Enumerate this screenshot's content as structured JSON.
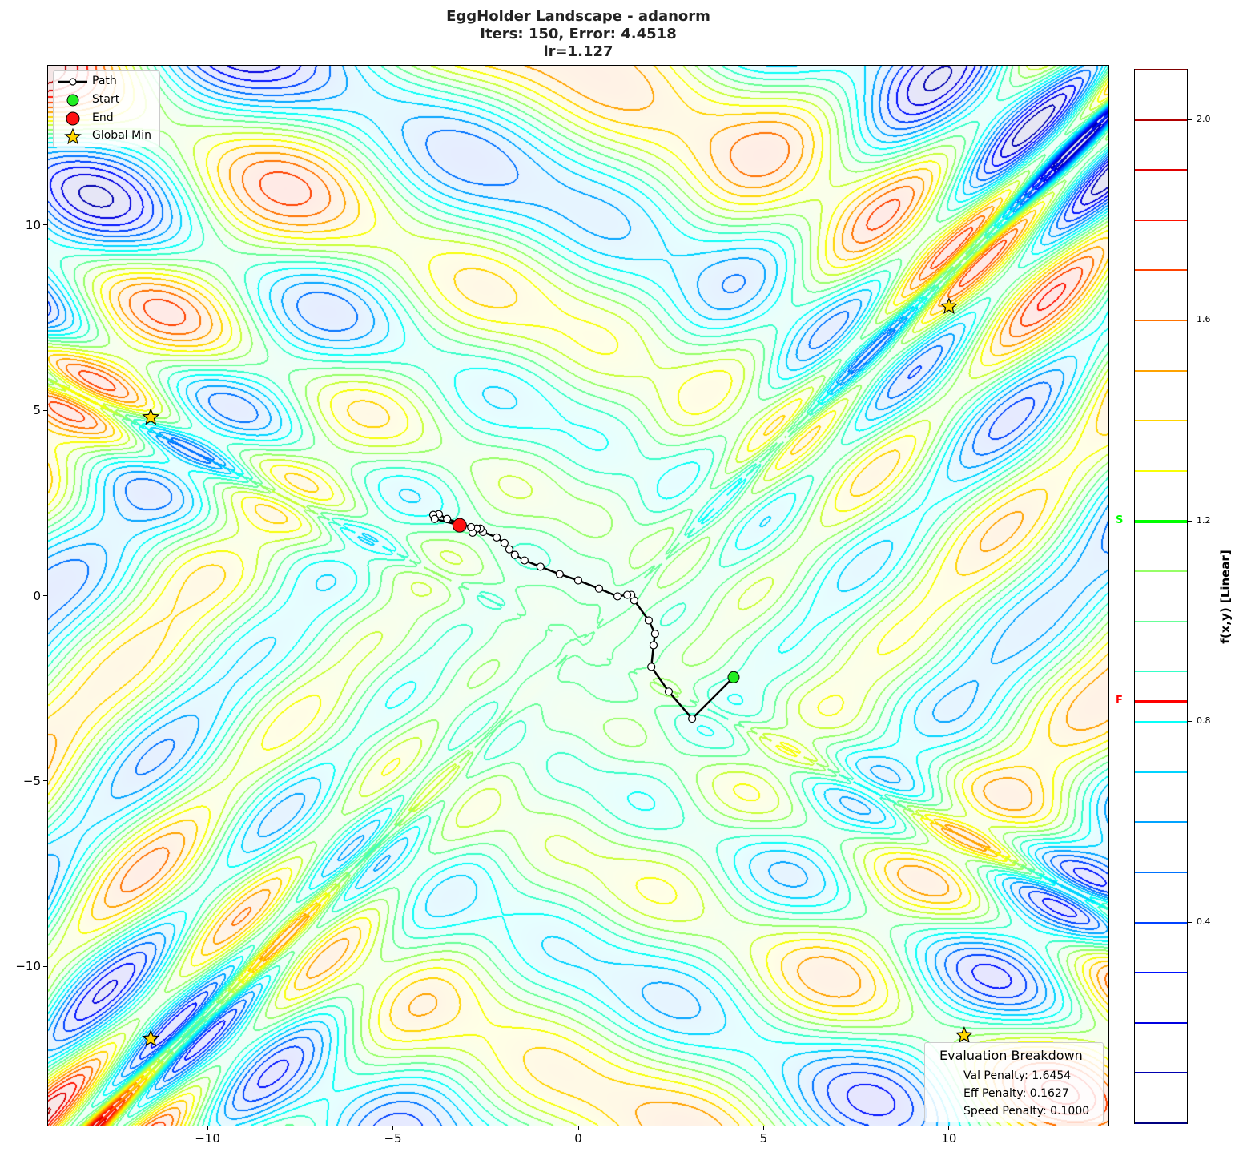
{
  "chart_data": {
    "type": "contour",
    "title_lines": [
      "EggHolder Landscape - adanorm",
      "Iters: 150, Error: 4.4518",
      "lr=1.127"
    ],
    "xlim": [
      -14.3,
      14.3
    ],
    "ylim": [
      -14.3,
      14.3
    ],
    "x_ticks": [
      -10,
      -5,
      0,
      5,
      10
    ],
    "y_ticks": [
      10,
      5,
      0,
      -5,
      -10
    ],
    "x_tick_labels": [
      "−10",
      "−5",
      "0",
      "5",
      "10"
    ],
    "y_tick_labels": [
      "10",
      "5",
      "0",
      "−5",
      "−10"
    ],
    "colormap": "jet",
    "contour_levels": [
      0.0,
      0.1,
      0.2,
      0.3,
      0.4,
      0.5,
      0.6,
      0.7,
      0.8,
      0.9,
      1.0,
      1.1,
      1.2,
      1.3,
      1.4,
      1.5,
      1.6,
      1.7,
      1.8,
      1.9,
      2.0,
      2.1
    ],
    "colorbar": {
      "label": "f(x,y) [Linear]",
      "range": [
        0.0,
        2.1
      ],
      "ticks": [
        2.0,
        1.6,
        1.2,
        0.8,
        0.4
      ],
      "tick_labels": [
        "2.0",
        "1.6",
        "1.2",
        "0.8",
        "0.4"
      ],
      "start_marker": {
        "label": "S",
        "value": 1.2,
        "color": "#00ff00"
      },
      "final_marker": {
        "label": "F",
        "value": 0.84,
        "color": "#ff0000"
      }
    },
    "path": {
      "x": [
        4.19,
        3.07,
        2.44,
        1.97,
        2.03,
        2.07,
        1.9,
        1.51,
        1.43,
        1.32,
        1.06,
        0.56,
        0.0,
        -0.5,
        -1.02,
        -1.45,
        -1.71,
        -1.86,
        -1.99,
        -2.2,
        -2.57,
        -2.64,
        -2.74,
        -2.85,
        -2.89,
        -3.54,
        -3.76,
        -3.91,
        -3.87,
        -3.2
      ],
      "y": [
        -2.2,
        -3.32,
        -2.59,
        -1.92,
        -1.34,
        -1.03,
        -0.67,
        -0.13,
        0.02,
        0.02,
        -0.02,
        0.19,
        0.41,
        0.58,
        0.78,
        0.95,
        1.1,
        1.25,
        1.42,
        1.57,
        1.72,
        1.81,
        1.81,
        1.7,
        1.85,
        2.07,
        2.2,
        2.18,
        2.07,
        1.9
      ]
    },
    "start": {
      "x": 4.19,
      "y": -2.2,
      "color": "#22ee22"
    },
    "end": {
      "x": -3.2,
      "y": 1.9,
      "color": "#ff1111"
    },
    "global_minima": [
      {
        "x": -11.53,
        "y": 4.81
      },
      {
        "x": 10.0,
        "y": 7.8
      },
      {
        "x": -11.53,
        "y": -11.96
      },
      {
        "x": 10.41,
        "y": -11.87
      }
    ],
    "legend": {
      "placement": "top-left",
      "entries": [
        "Path",
        "Start",
        "End",
        "Global Min"
      ]
    }
  },
  "evaluation": {
    "title": "Evaluation Breakdown",
    "rows": [
      "Val Penalty: 1.6454",
      "Eff Penalty: 0.1627",
      "Speed Penalty: 0.1000"
    ]
  }
}
